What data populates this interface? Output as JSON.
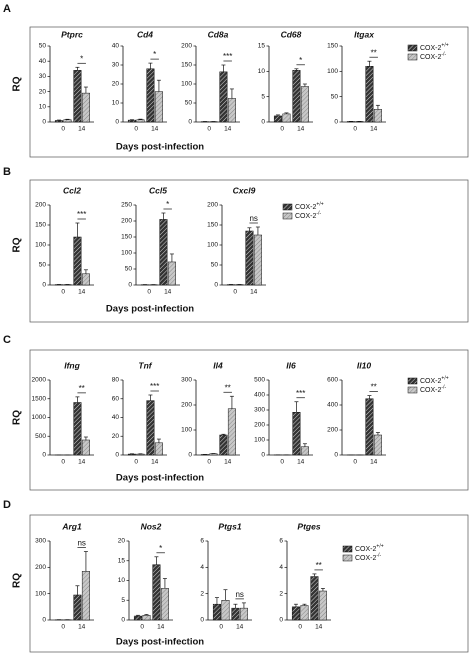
{
  "chart_data": [
    {
      "type": "bar",
      "label": "A",
      "y_label": "RQ",
      "x_label": "Days post-infection",
      "categories": [
        "0",
        "14"
      ],
      "series": [
        {
          "name": "COX-2",
          "sup": "+/+",
          "color": "#333333"
        },
        {
          "name": "COX-2",
          "sup": "-/-",
          "color": "#c8c8c8"
        }
      ],
      "charts": [
        {
          "title": "Ptprc",
          "ylim": [
            0,
            50
          ],
          "yticks": [
            0,
            10,
            20,
            30,
            40,
            50
          ],
          "significance": "*",
          "series": [
            {
              "values": [
                1,
                34
              ],
              "errors": [
                0.3,
                2
              ]
            },
            {
              "values": [
                1.5,
                19
              ],
              "errors": [
                0.3,
                4
              ]
            }
          ]
        },
        {
          "title": "Cd4",
          "ylim": [
            0,
            40
          ],
          "yticks": [
            0,
            10,
            20,
            30,
            40
          ],
          "significance": "*",
          "series": [
            {
              "values": [
                1,
                28
              ],
              "errors": [
                0.2,
                3
              ]
            },
            {
              "values": [
                1.2,
                16
              ],
              "errors": [
                0.3,
                6
              ]
            }
          ]
        },
        {
          "title": "Cd8a",
          "ylim": [
            0,
            200
          ],
          "yticks": [
            0,
            50,
            100,
            150,
            200
          ],
          "significance": "***",
          "series": [
            {
              "values": [
                1,
                132
              ],
              "errors": [
                0.3,
                18
              ]
            },
            {
              "values": [
                1,
                62
              ],
              "errors": [
                0.3,
                25
              ]
            }
          ]
        },
        {
          "title": "Cd68",
          "ylim": [
            0,
            15
          ],
          "yticks": [
            0,
            5,
            10,
            15
          ],
          "significance": "*",
          "series": [
            {
              "values": [
                1.2,
                10.2
              ],
              "errors": [
                0.2,
                0.3
              ]
            },
            {
              "values": [
                1.6,
                7
              ],
              "errors": [
                0.2,
                0.5
              ]
            }
          ]
        },
        {
          "title": "Itgax",
          "ylim": [
            0,
            150
          ],
          "yticks": [
            0,
            50,
            100,
            150
          ],
          "significance": "**",
          "series": [
            {
              "values": [
                1,
                110
              ],
              "errors": [
                0.3,
                10
              ]
            },
            {
              "values": [
                1,
                25
              ],
              "errors": [
                0.3,
                8
              ]
            }
          ]
        }
      ]
    },
    {
      "type": "bar",
      "label": "B",
      "y_label": "RQ",
      "x_label": "Days post-infection",
      "categories": [
        "0",
        "14"
      ],
      "series": [
        {
          "name": "COX-2",
          "sup": "+/+",
          "color": "#333333"
        },
        {
          "name": "COX-2",
          "sup": "-/-",
          "color": "#c8c8c8"
        }
      ],
      "charts": [
        {
          "title": "Ccl2",
          "ylim": [
            0,
            200
          ],
          "yticks": [
            0,
            50,
            100,
            150,
            200
          ],
          "significance": "***",
          "series": [
            {
              "values": [
                1,
                120
              ],
              "errors": [
                0.3,
                35
              ]
            },
            {
              "values": [
                1,
                28
              ],
              "errors": [
                0.3,
                10
              ]
            }
          ]
        },
        {
          "title": "Ccl5",
          "ylim": [
            0,
            250
          ],
          "yticks": [
            0,
            50,
            100,
            150,
            200,
            250
          ],
          "significance": "*",
          "series": [
            {
              "values": [
                1,
                205
              ],
              "errors": [
                0.3,
                20
              ]
            },
            {
              "values": [
                1,
                72
              ],
              "errors": [
                0.3,
                25
              ]
            }
          ]
        },
        {
          "title": "Cxcl9",
          "ylim": [
            0,
            200
          ],
          "yticks": [
            0,
            50,
            100,
            150,
            200
          ],
          "significance": "ns",
          "series": [
            {
              "values": [
                1,
                135
              ],
              "errors": [
                0.3,
                8
              ]
            },
            {
              "values": [
                1,
                125
              ],
              "errors": [
                0.3,
                20
              ]
            }
          ]
        }
      ]
    },
    {
      "type": "bar",
      "label": "C",
      "y_label": "RQ",
      "x_label": "Days post-infection",
      "categories": [
        "0",
        "14"
      ],
      "series": [
        {
          "name": "COX-2",
          "sup": "+/+",
          "color": "#333333"
        },
        {
          "name": "COX-2",
          "sup": "-/-",
          "color": "#c8c8c8"
        }
      ],
      "charts": [
        {
          "title": "Ifng",
          "ylim": [
            0,
            2000
          ],
          "yticks": [
            0,
            500,
            1000,
            1500,
            2000
          ],
          "significance": "**",
          "series": [
            {
              "values": [
                1,
                1400
              ],
              "errors": [
                0.3,
                150
              ]
            },
            {
              "values": [
                1,
                400
              ],
              "errors": [
                0.3,
                80
              ]
            }
          ]
        },
        {
          "title": "Tnf",
          "ylim": [
            0,
            80
          ],
          "yticks": [
            0,
            20,
            40,
            60,
            80
          ],
          "significance": "***",
          "series": [
            {
              "values": [
                1,
                58
              ],
              "errors": [
                0.3,
                6
              ]
            },
            {
              "values": [
                1,
                13
              ],
              "errors": [
                0.3,
                4
              ]
            }
          ]
        },
        {
          "title": "Il4",
          "ylim": [
            0,
            300
          ],
          "yticks": [
            0,
            100,
            200,
            300
          ],
          "significance": "**",
          "series": [
            {
              "values": [
                2,
                80
              ],
              "errors": [
                0.3,
                3
              ]
            },
            {
              "values": [
                5,
                185
              ],
              "errors": [
                1,
                50
              ]
            }
          ]
        },
        {
          "title": "Il6",
          "ylim": [
            0,
            500
          ],
          "yticks": [
            0,
            100,
            200,
            300,
            400,
            500
          ],
          "significance": "***",
          "series": [
            {
              "values": [
                1,
                285
              ],
              "errors": [
                0.3,
                70
              ]
            },
            {
              "values": [
                1,
                55
              ],
              "errors": [
                0.3,
                20
              ]
            }
          ]
        },
        {
          "title": "Il10",
          "ylim": [
            0,
            600
          ],
          "yticks": [
            0,
            200,
            400,
            600
          ],
          "significance": "**",
          "series": [
            {
              "values": [
                1,
                450
              ],
              "errors": [
                0.3,
                25
              ]
            },
            {
              "values": [
                1,
                160
              ],
              "errors": [
                0.3,
                20
              ]
            }
          ]
        }
      ]
    },
    {
      "type": "bar",
      "label": "D",
      "y_label": "RQ",
      "x_label": "Days post-infection",
      "categories": [
        "0",
        "14"
      ],
      "series": [
        {
          "name": "COX-2",
          "sup": "+/+",
          "color": "#333333"
        },
        {
          "name": "COX-2",
          "sup": "-/-",
          "color": "#c8c8c8"
        }
      ],
      "charts": [
        {
          "title": "Arg1",
          "ylim": [
            0,
            300
          ],
          "yticks": [
            0,
            100,
            200,
            300
          ],
          "significance": "ns",
          "series": [
            {
              "values": [
                1,
                95
              ],
              "errors": [
                0.3,
                35
              ]
            },
            {
              "values": [
                1,
                185
              ],
              "errors": [
                0.3,
                75
              ]
            }
          ]
        },
        {
          "title": "Nos2",
          "ylim": [
            0,
            20
          ],
          "yticks": [
            0,
            5,
            10,
            15,
            20
          ],
          "significance": "*",
          "series": [
            {
              "values": [
                1,
                14
              ],
              "errors": [
                0.2,
                2
              ]
            },
            {
              "values": [
                1.2,
                8
              ],
              "errors": [
                0.2,
                2.5
              ]
            }
          ]
        },
        {
          "title": "Ptgs1",
          "ylim": [
            0,
            6
          ],
          "yticks": [
            0,
            2,
            4,
            6
          ],
          "significance": "ns",
          "series": [
            {
              "values": [
                1.2,
                0.9
              ],
              "errors": [
                0.5,
                0.3
              ]
            },
            {
              "values": [
                1.5,
                0.9
              ],
              "errors": [
                0.8,
                0.4
              ]
            }
          ]
        },
        {
          "title": "Ptges",
          "ylim": [
            0,
            6
          ],
          "yticks": [
            0,
            2,
            4,
            6
          ],
          "significance": "**",
          "series": [
            {
              "values": [
                1,
                3.3
              ],
              "errors": [
                0.2,
                0.2
              ]
            },
            {
              "values": [
                1.1,
                2.2
              ],
              "errors": [
                0.1,
                0.2
              ]
            }
          ]
        }
      ]
    }
  ]
}
